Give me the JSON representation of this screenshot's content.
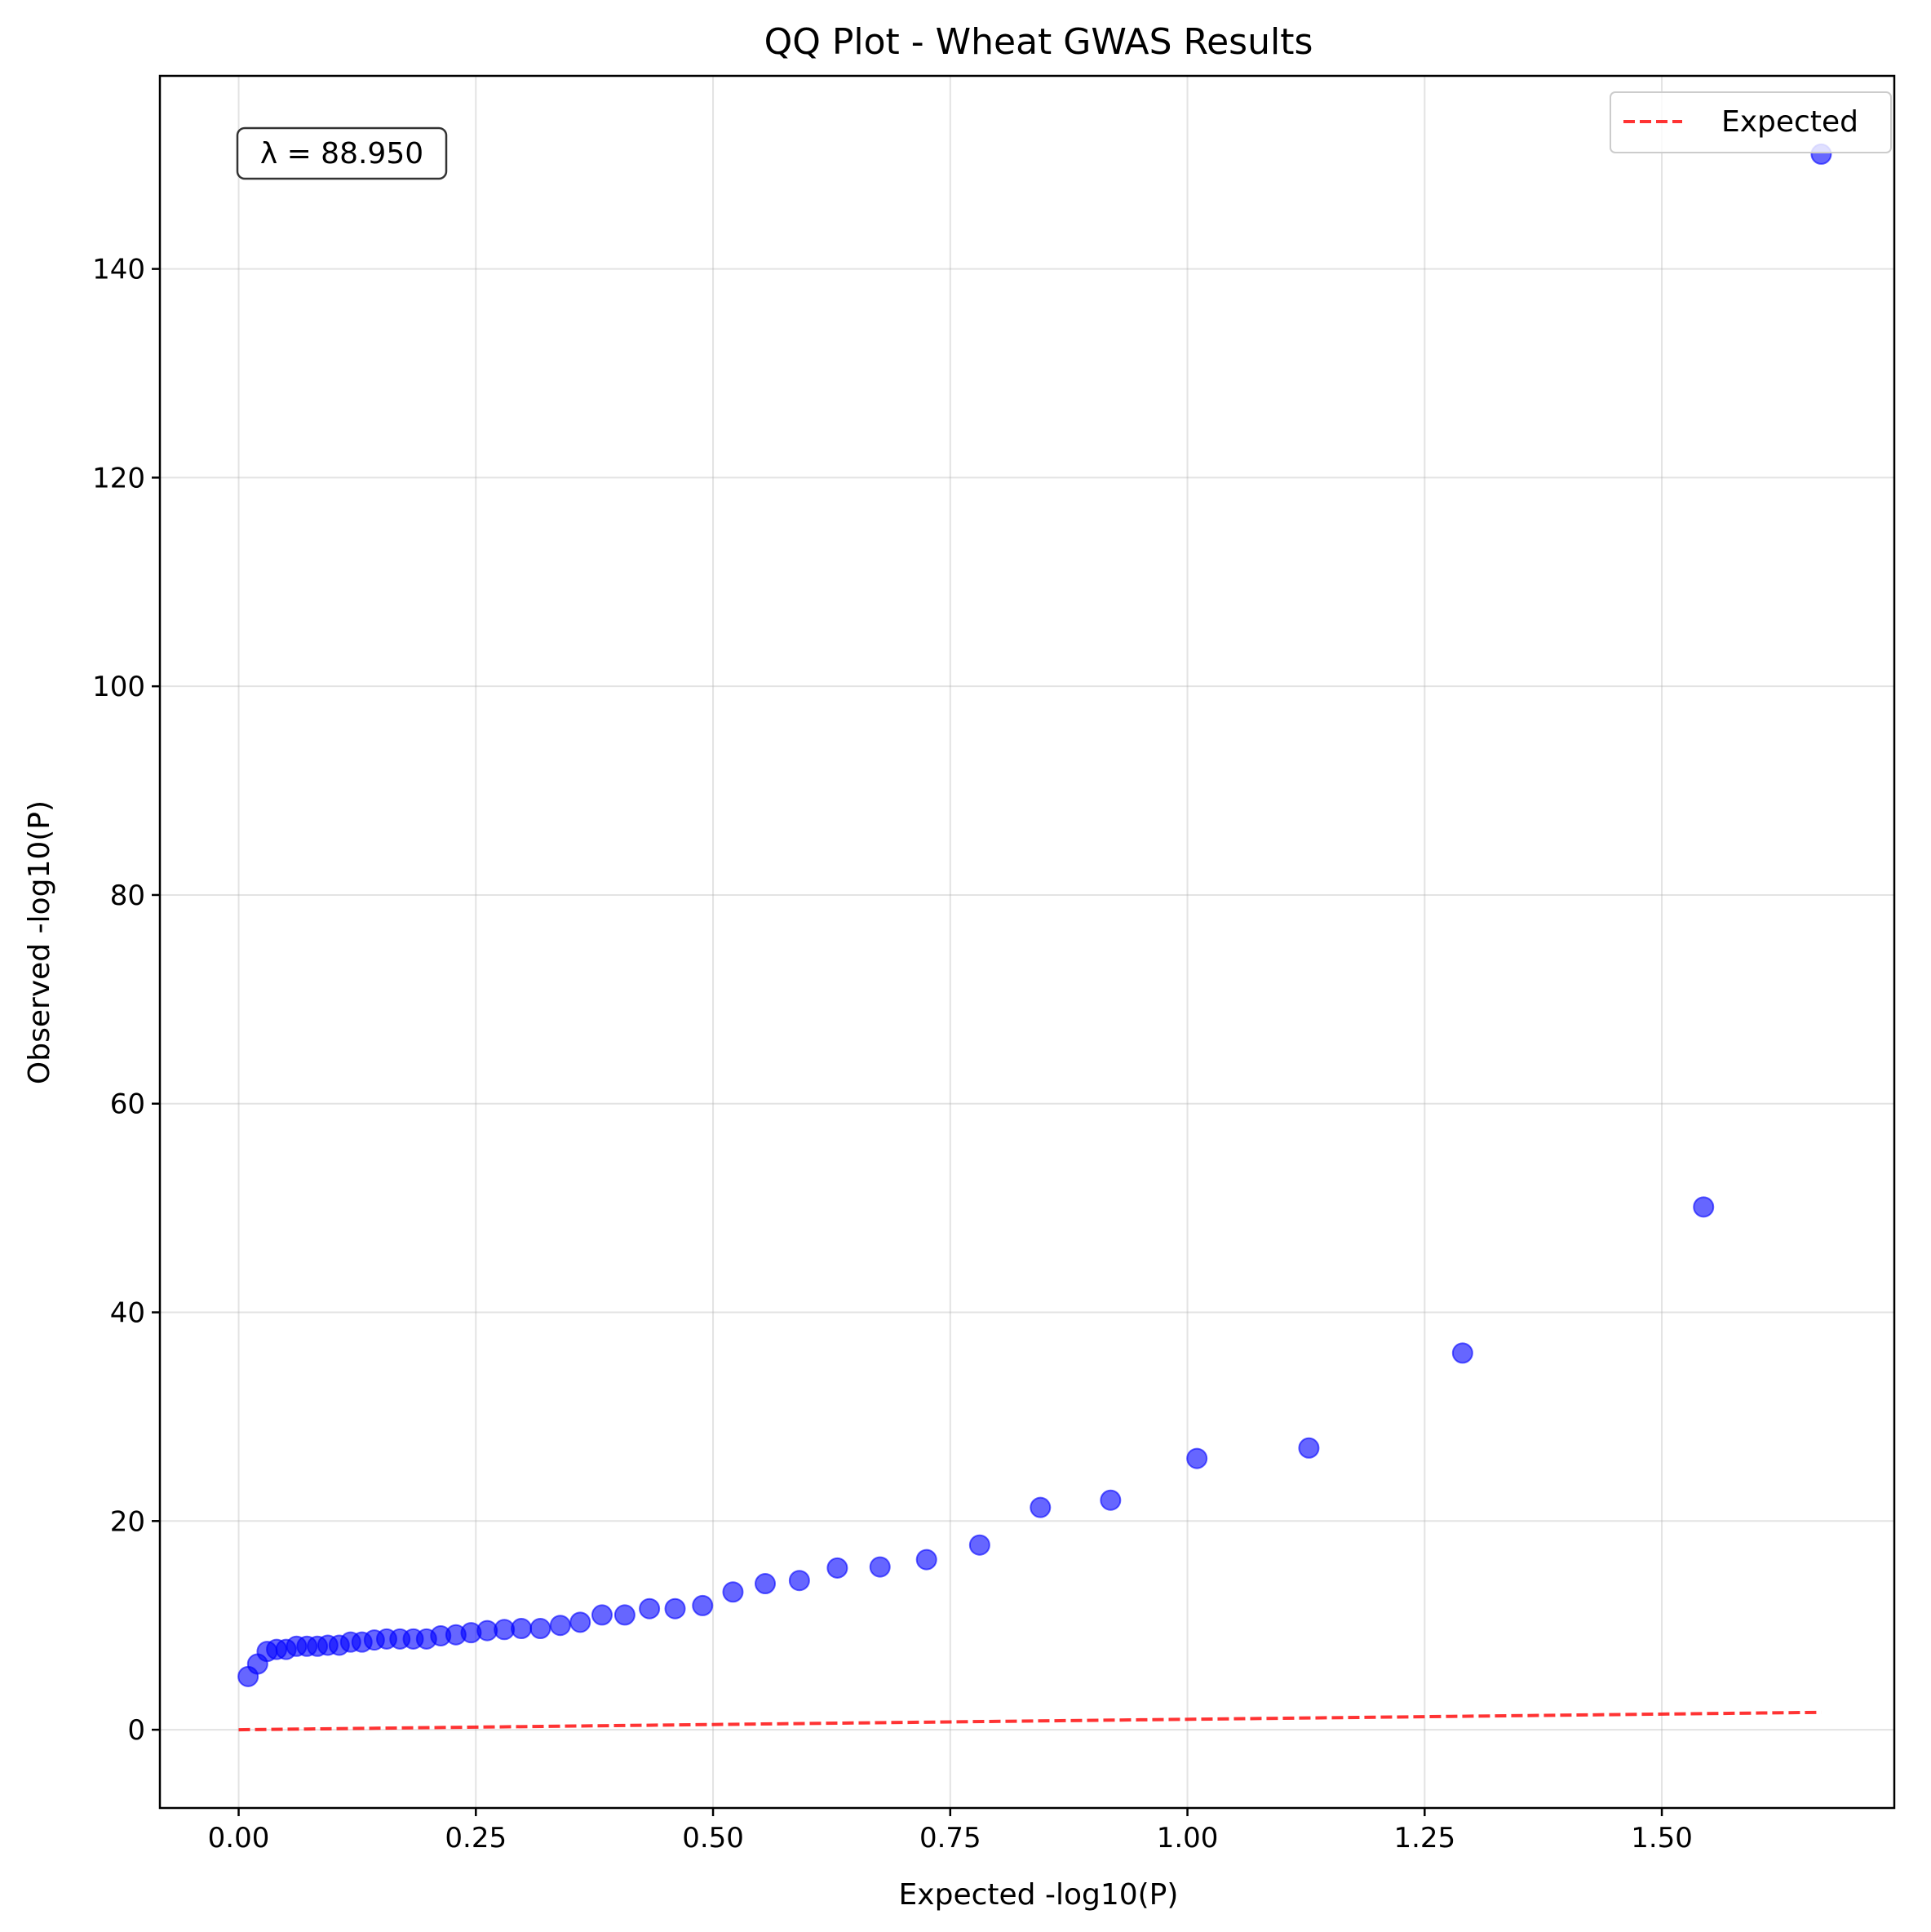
{
  "chart_data": {
    "type": "scatter",
    "title": "QQ Plot - Wheat GWAS Results",
    "xlabel": "Expected -log10(P)",
    "ylabel": "Observed -log10(P)",
    "xlim": [
      -0.083,
      1.745
    ],
    "ylim": [
      -7.5,
      158.5
    ],
    "xticks": [
      0.0,
      0.25,
      0.5,
      0.75,
      1.0,
      1.25,
      1.5
    ],
    "xtick_labels": [
      "0.00",
      "0.25",
      "0.50",
      "0.75",
      "1.00",
      "1.25",
      "1.50"
    ],
    "yticks": [
      0,
      20,
      40,
      60,
      80,
      100,
      120,
      140
    ],
    "ytick_labels": [
      "0",
      "20",
      "40",
      "60",
      "80",
      "100",
      "120",
      "140"
    ],
    "grid": true,
    "legend_position": "top-right",
    "annotation": "λ = 88.950",
    "series": [
      {
        "name": "",
        "kind": "scatter",
        "color": "#0000ff",
        "points": [
          [
            0.01,
            5.1
          ],
          [
            0.02,
            6.3
          ],
          [
            0.03,
            7.5
          ],
          [
            0.04,
            7.7
          ],
          [
            0.05,
            7.7
          ],
          [
            0.061,
            8.0
          ],
          [
            0.072,
            8.0
          ],
          [
            0.083,
            8.0
          ],
          [
            0.094,
            8.1
          ],
          [
            0.106,
            8.1
          ],
          [
            0.118,
            8.4
          ],
          [
            0.13,
            8.4
          ],
          [
            0.143,
            8.6
          ],
          [
            0.156,
            8.7
          ],
          [
            0.17,
            8.7
          ],
          [
            0.184,
            8.7
          ],
          [
            0.198,
            8.7
          ],
          [
            0.213,
            9.0
          ],
          [
            0.229,
            9.1
          ],
          [
            0.245,
            9.3
          ],
          [
            0.262,
            9.5
          ],
          [
            0.28,
            9.6
          ],
          [
            0.298,
            9.7
          ],
          [
            0.318,
            9.7
          ],
          [
            0.339,
            10.0
          ],
          [
            0.36,
            10.3
          ],
          [
            0.383,
            11.0
          ],
          [
            0.407,
            11.0
          ],
          [
            0.433,
            11.6
          ],
          [
            0.46,
            11.6
          ],
          [
            0.489,
            11.9
          ],
          [
            0.521,
            13.2
          ],
          [
            0.555,
            14.0
          ],
          [
            0.591,
            14.3
          ],
          [
            0.631,
            15.5
          ],
          [
            0.676,
            15.6
          ],
          [
            0.725,
            16.3
          ],
          [
            0.781,
            17.7
          ],
          [
            0.845,
            21.3
          ],
          [
            0.919,
            22.0
          ],
          [
            1.01,
            26.0
          ],
          [
            1.128,
            27.0
          ],
          [
            1.29,
            36.1
          ],
          [
            1.544,
            50.1
          ],
          [
            1.668,
            151.0
          ]
        ]
      },
      {
        "name": "Expected",
        "kind": "line",
        "style": "dashed",
        "color": "#ff0000",
        "points": [
          [
            0.0,
            0.0
          ],
          [
            1.668,
            1.668
          ]
        ]
      }
    ]
  }
}
